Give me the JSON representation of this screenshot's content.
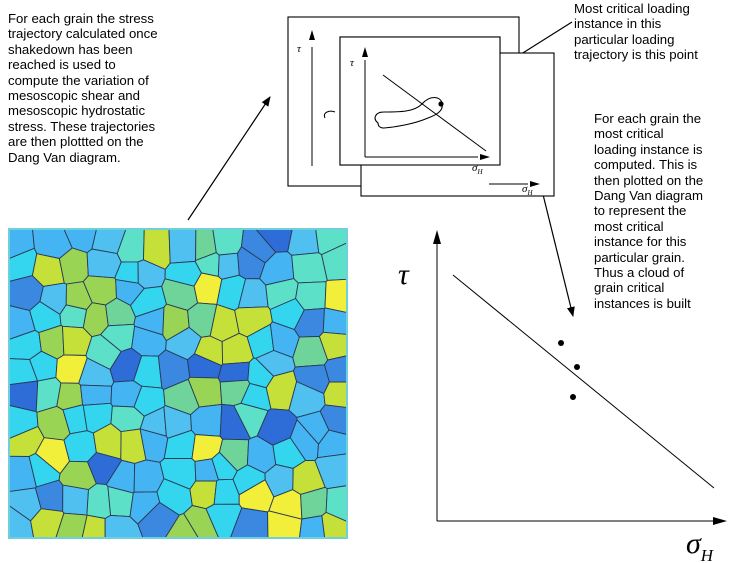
{
  "texts": {
    "left_paragraph": "For each grain the stress\ntrajectory calculated once\nshakedown has been\nreached is used to\ncompute the variation of\nmesoscopic shear and\nmesoscopic hydrostatic\nstress. These trajectories\nare then plottted on the\nDang Van diagram.",
    "top_right_note": "Most critical loading\ninstance in this\nparticular loading\ntrajectory is this point",
    "right_paragraph": "For each grain the\nmost critical\nloading instance is\ncomputed. This is\nthen plotted on the\nDang Van diagram\nto represent the\nmost critical\ninstance for this\nparticular grain.\nThus a cloud of\ngrain critical\ninstances is built"
  },
  "symbols": {
    "tau": "τ",
    "sigma": "σ",
    "sub_h": "H"
  },
  "colors": {
    "grain_palette": [
      "#33d6ee",
      "#4fc0f0",
      "#3a88e0",
      "#2e6cd8",
      "#6ed49a",
      "#9ad455",
      "#c6e03a",
      "#f2ef3a",
      "#5de0c8",
      "#45b4f2"
    ],
    "grain_boundary": "#2a3a55",
    "frame_border": "#6fd0dc"
  }
}
